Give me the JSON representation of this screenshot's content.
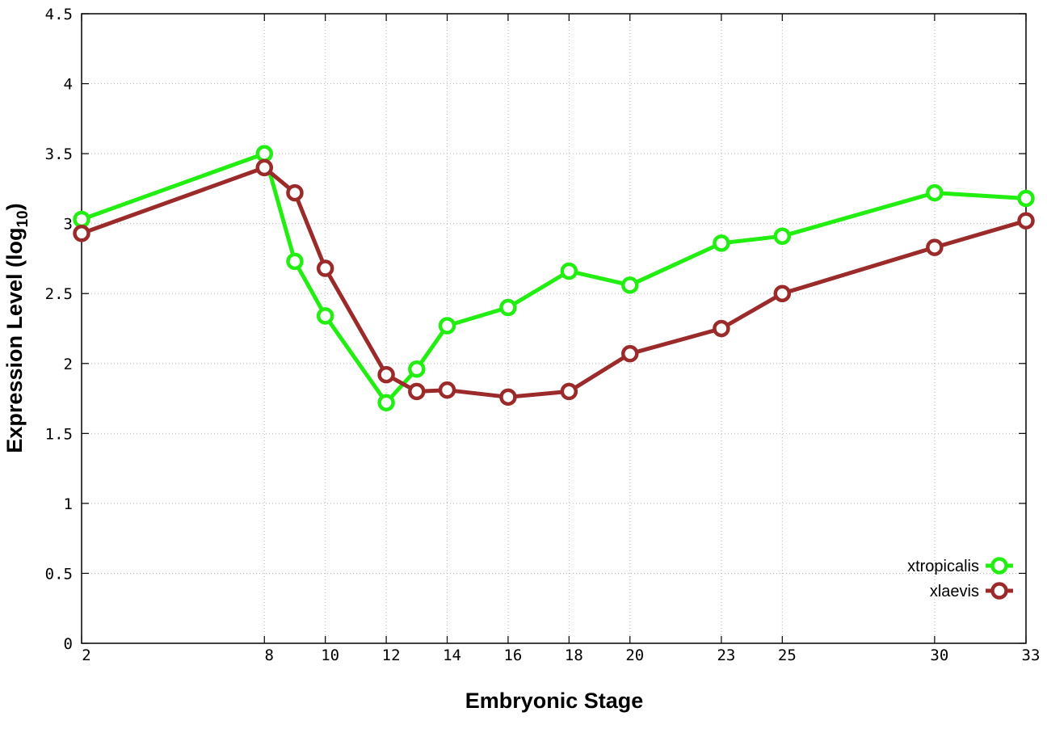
{
  "chart_data": {
    "type": "line",
    "title": "",
    "xlabel": "Embryonic Stage",
    "ylabel_main": "Expression Level (log",
    "ylabel_sub": "10",
    "ylabel_close": ")",
    "x_ticks": [
      "2",
      "8",
      "10",
      "12",
      "14",
      "16",
      "18",
      "20",
      "23",
      "25",
      "30",
      "33"
    ],
    "y_ticks": [
      "0",
      "0.5",
      "1",
      "1.5",
      "2",
      "2.5",
      "3",
      "3.5",
      "4",
      "4.5"
    ],
    "ylim": [
      0,
      4.5
    ],
    "grid": true,
    "legend_position": "bottom-right",
    "x": [
      2,
      8,
      9,
      10,
      12,
      13,
      14,
      16,
      18,
      20,
      23,
      25,
      30,
      33
    ],
    "series": [
      {
        "name": "xtropicalis",
        "color": "#22ee11",
        "values": [
          3.03,
          3.5,
          2.73,
          2.34,
          1.72,
          1.96,
          2.27,
          2.4,
          2.66,
          2.56,
          2.86,
          2.91,
          3.22,
          3.18
        ]
      },
      {
        "name": "xlaevis",
        "color": "#9b2b2b",
        "values": [
          2.93,
          3.4,
          3.22,
          2.68,
          1.92,
          1.8,
          1.81,
          1.76,
          1.8,
          2.07,
          2.25,
          2.5,
          2.83,
          3.02
        ]
      }
    ]
  }
}
